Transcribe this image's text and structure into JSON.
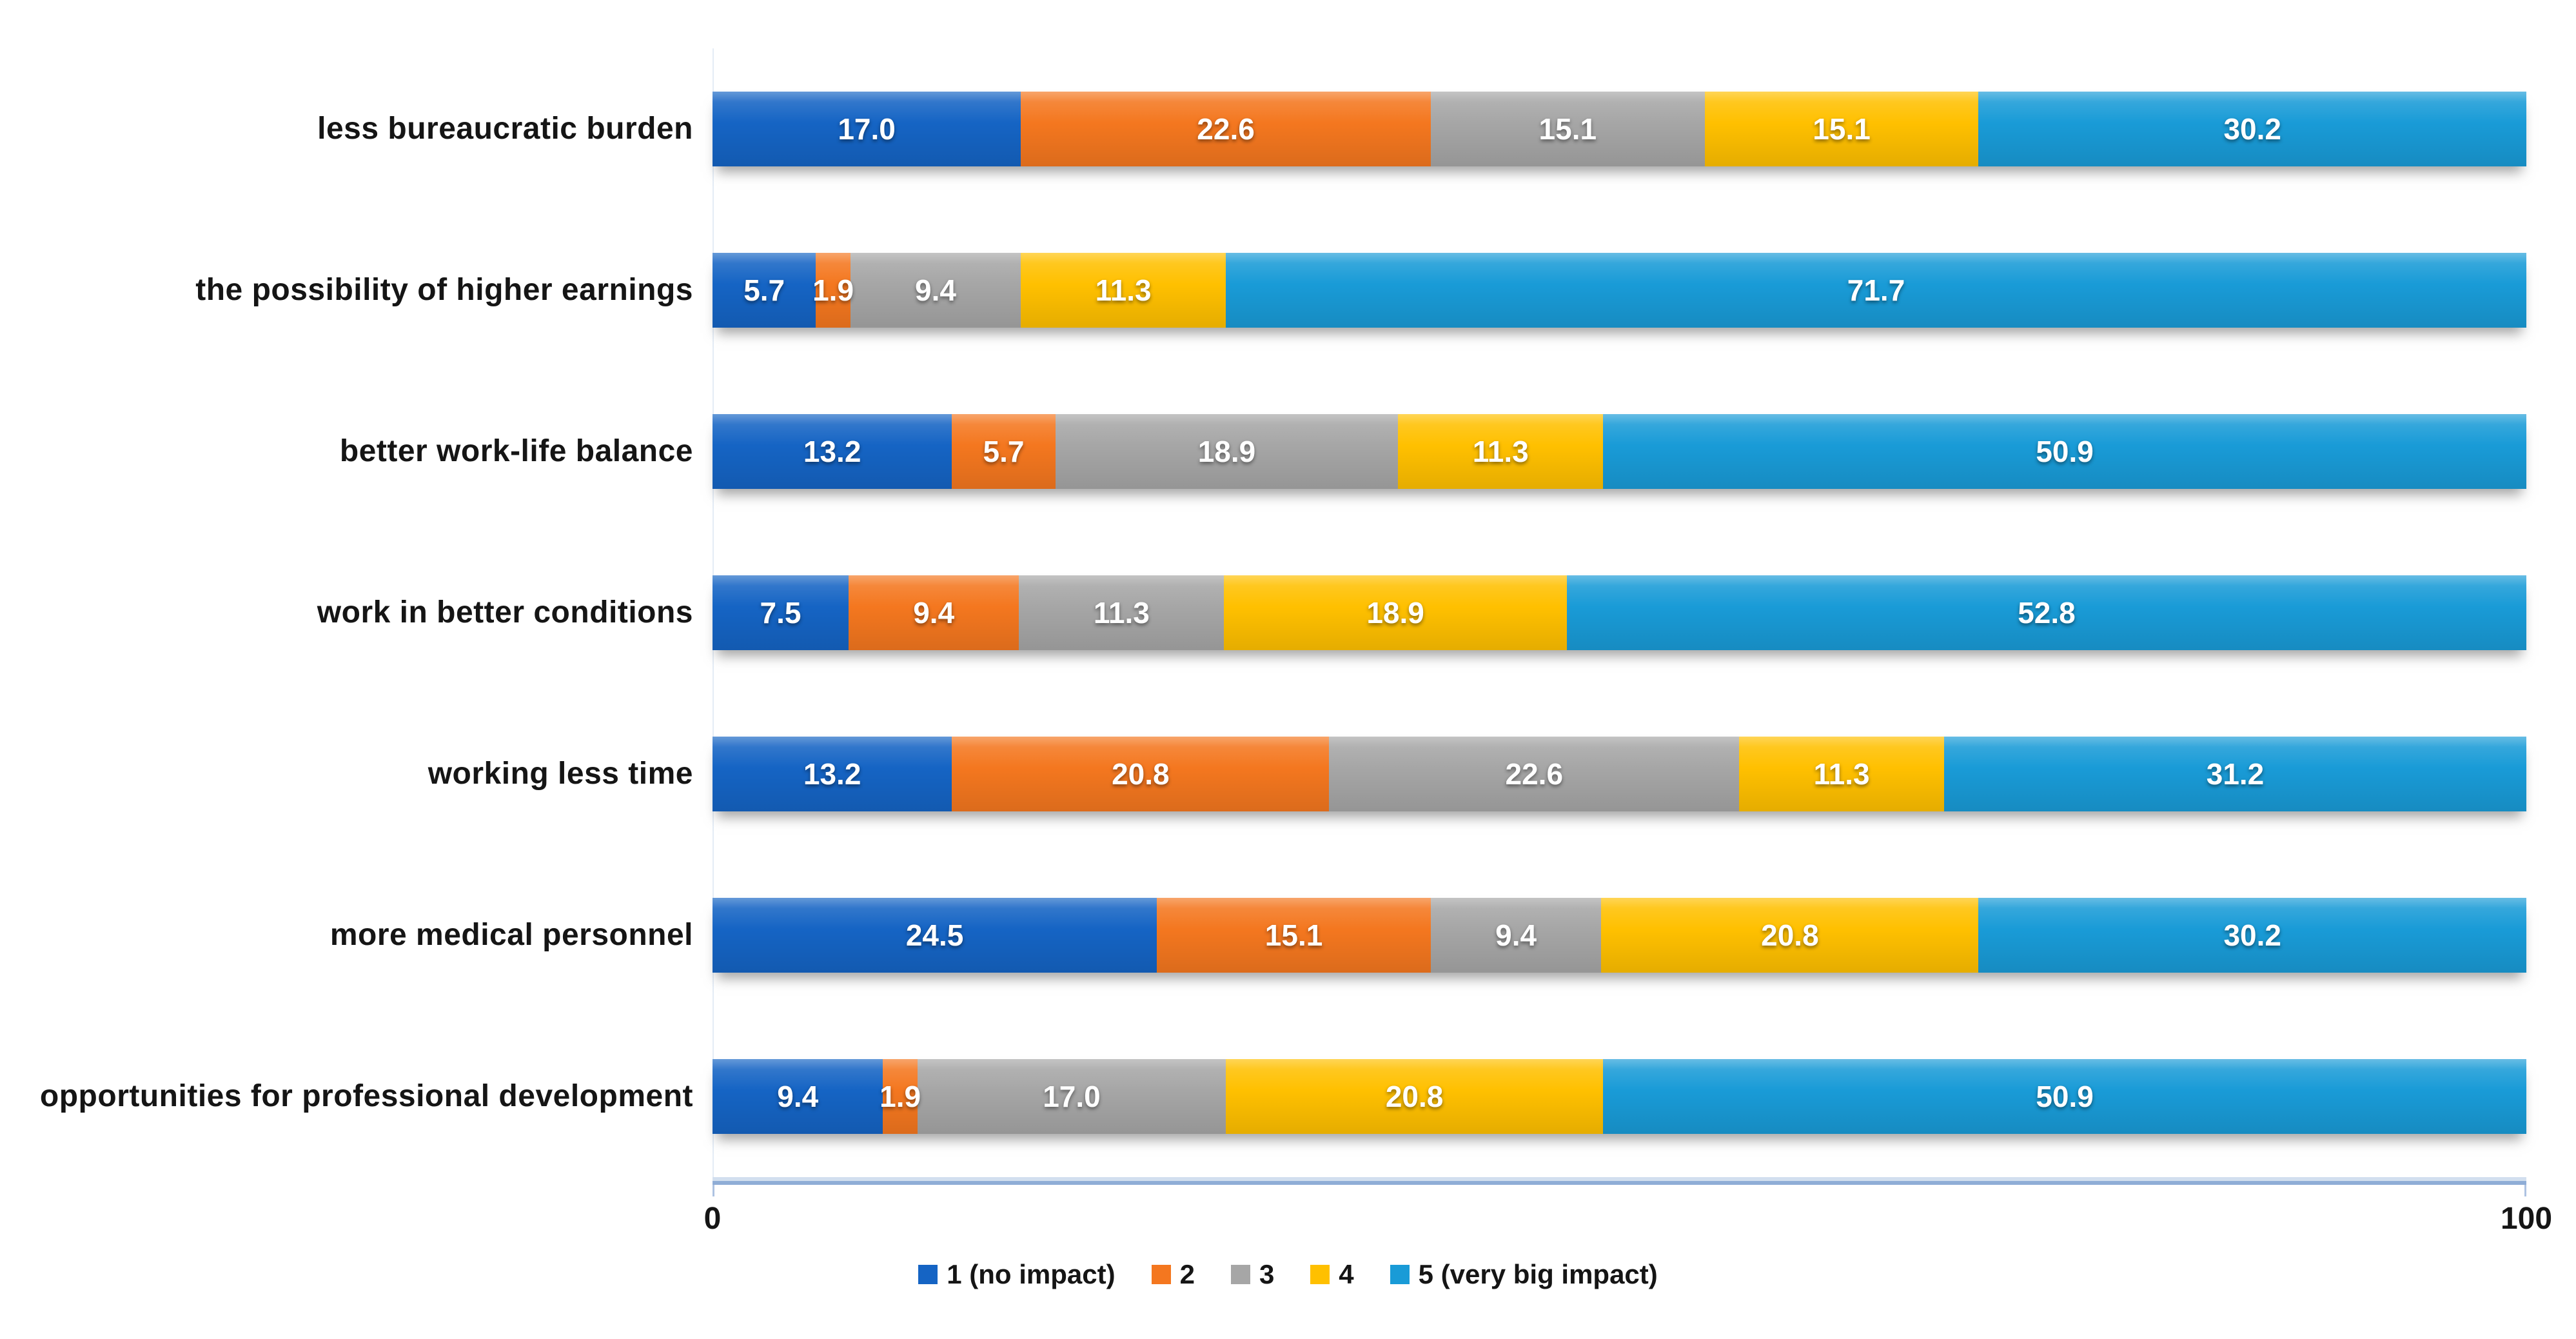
{
  "chart_data": {
    "type": "bar",
    "orientation": "horizontal",
    "stacked": true,
    "title": "",
    "categories": [
      "less bureaucratic burden",
      "the possibility of higher earnings",
      "better work-life balance",
      "work in better conditions",
      "working less time",
      "more medical personnel",
      "opportunities for professional development"
    ],
    "series": [
      {
        "name": "1 (no impact)",
        "color": "#1564C4",
        "values": [
          17.0,
          5.7,
          13.2,
          7.5,
          13.2,
          24.5,
          9.4
        ]
      },
      {
        "name": "2",
        "color": "#F4771F",
        "values": [
          22.6,
          1.9,
          5.7,
          9.4,
          20.8,
          15.1,
          1.9
        ]
      },
      {
        "name": "3",
        "color": "#A6A6A6",
        "values": [
          15.1,
          9.4,
          18.9,
          11.3,
          22.6,
          9.4,
          17.0
        ]
      },
      {
        "name": "4",
        "color": "#FFC000",
        "values": [
          15.1,
          11.3,
          11.3,
          18.9,
          11.3,
          20.8,
          20.8
        ]
      },
      {
        "name": "5 (very big impact)",
        "color": "#199BD7",
        "values": [
          30.2,
          71.7,
          50.9,
          52.8,
          31.2,
          30.2,
          50.9
        ]
      }
    ],
    "xlim": [
      0,
      100
    ],
    "x_ticks": [
      "0",
      "100"
    ],
    "legend_position": "bottom",
    "grid": "off",
    "value_label_color": "#FFFFFF",
    "axis_line_color": "#8FADD6",
    "background": "#FFFFFF"
  }
}
